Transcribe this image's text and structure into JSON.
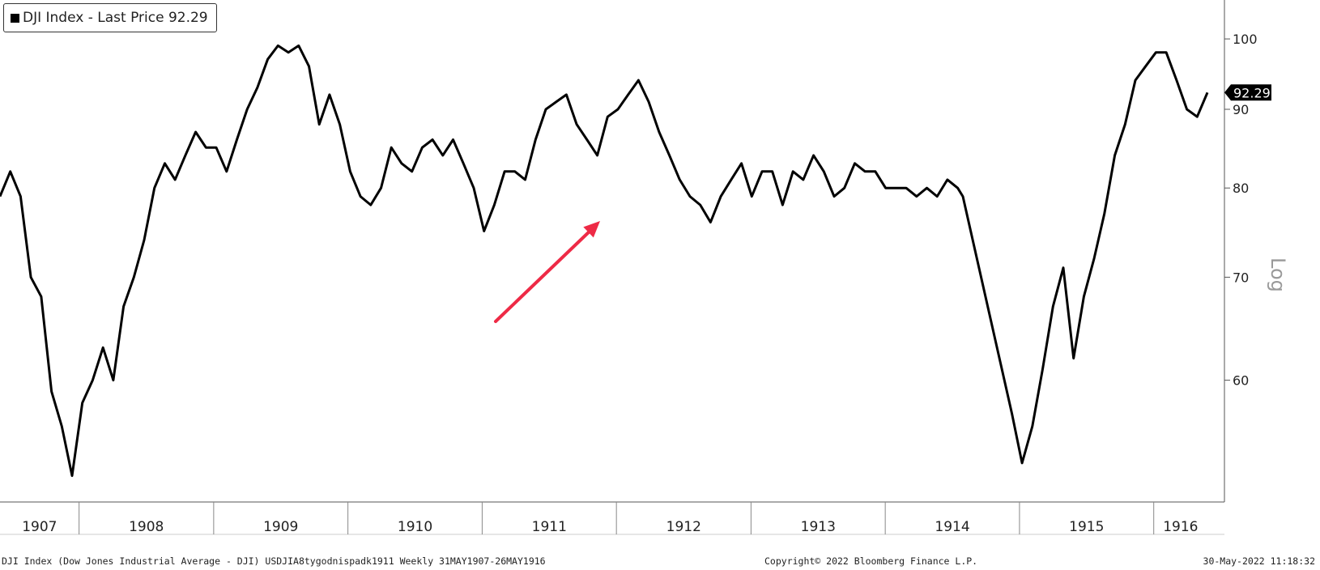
{
  "legend": {
    "label": "DJI Index - Last Price 92.29"
  },
  "footer": {
    "left": "DJI Index (Dow Jones Industrial Average - DJI) USDJIA8tygodnispadk1911  Weekly 31MAY1907-26MAY1916",
    "center": "Copyright© 2022 Bloomberg Finance L.P.",
    "right": "30-May-2022 11:18:32"
  },
  "colors": {
    "line": "#000000",
    "arrow": "#ee2a46",
    "axis": "#555555"
  },
  "chart_data": {
    "type": "line",
    "title": "DJI Index - Last Price 92.29",
    "ylabel": "Log",
    "yscale": "log",
    "ylim": [
      50,
      106
    ],
    "yticks": [
      60,
      70,
      80,
      90,
      100
    ],
    "xticks": [
      "1907",
      "1908",
      "1909",
      "1910",
      "1911",
      "1912",
      "1913",
      "1914",
      "1915",
      "1916"
    ],
    "x_range": [
      "1907-05-31",
      "1916-05-26"
    ],
    "grid": false,
    "last_value_label": "92.29",
    "series": [
      {
        "name": "DJI Index",
        "x": [
          "1907-05-31",
          "1907-06-28",
          "1907-07-26",
          "1907-08-23",
          "1907-09-20",
          "1907-10-18",
          "1907-11-15",
          "1907-12-13",
          "1908-01-10",
          "1908-02-07",
          "1908-03-06",
          "1908-04-03",
          "1908-05-01",
          "1908-05-29",
          "1908-06-26",
          "1908-07-24",
          "1908-08-21",
          "1908-09-18",
          "1908-10-16",
          "1908-11-13",
          "1908-12-11",
          "1909-01-08",
          "1909-02-05",
          "1909-03-05",
          "1909-04-02",
          "1909-04-30",
          "1909-05-28",
          "1909-06-25",
          "1909-07-23",
          "1909-08-20",
          "1909-09-17",
          "1909-10-15",
          "1909-11-12",
          "1909-12-10",
          "1910-01-07",
          "1910-02-04",
          "1910-03-04",
          "1910-04-01",
          "1910-04-29",
          "1910-05-27",
          "1910-06-24",
          "1910-07-22",
          "1910-08-19",
          "1910-09-16",
          "1910-10-14",
          "1910-11-11",
          "1910-12-09",
          "1911-01-06",
          "1911-02-03",
          "1911-03-03",
          "1911-03-31",
          "1911-04-28",
          "1911-05-26",
          "1911-06-23",
          "1911-07-21",
          "1911-08-18",
          "1911-09-15",
          "1911-10-13",
          "1911-11-10",
          "1911-12-08",
          "1912-01-05",
          "1912-02-02",
          "1912-03-01",
          "1912-03-29",
          "1912-04-26",
          "1912-05-24",
          "1912-06-21",
          "1912-07-19",
          "1912-08-16",
          "1912-09-13",
          "1912-10-11",
          "1912-11-08",
          "1912-12-06",
          "1913-01-03",
          "1913-01-31",
          "1913-02-28",
          "1913-03-28",
          "1913-04-25",
          "1913-05-23",
          "1913-06-20",
          "1913-07-18",
          "1913-08-15",
          "1913-09-12",
          "1913-10-10",
          "1913-11-07",
          "1913-12-05",
          "1914-01-02",
          "1914-01-30",
          "1914-02-27",
          "1914-03-27",
          "1914-04-24",
          "1914-05-22",
          "1914-06-19",
          "1914-07-17",
          "1914-07-31",
          "1914-12-12",
          "1915-01-08",
          "1915-02-05",
          "1915-03-05",
          "1915-04-02",
          "1915-04-30",
          "1915-05-28",
          "1915-06-25",
          "1915-07-23",
          "1915-08-20",
          "1915-09-17",
          "1915-10-15",
          "1915-11-12",
          "1915-12-10",
          "1916-01-07",
          "1916-02-04",
          "1916-03-03",
          "1916-03-31",
          "1916-04-28",
          "1916-05-26"
        ],
        "values": [
          79,
          82,
          79,
          70,
          68,
          59,
          56,
          52,
          58,
          60,
          63,
          60,
          67,
          70,
          74,
          80,
          83,
          81,
          84,
          87,
          85,
          85,
          82,
          86,
          90,
          93,
          97,
          99,
          98,
          99,
          96,
          88,
          92,
          88,
          82,
          79,
          78,
          80,
          85,
          83,
          82,
          85,
          86,
          84,
          86,
          83,
          80,
          75,
          78,
          82,
          82,
          81,
          86,
          90,
          91,
          92,
          88,
          86,
          84,
          89,
          90,
          92,
          94,
          91,
          87,
          84,
          81,
          79,
          78,
          76,
          79,
          81,
          83,
          79,
          82,
          82,
          78,
          82,
          81,
          84,
          82,
          79,
          80,
          83,
          82,
          82,
          80,
          80,
          80,
          79,
          80,
          79,
          81,
          80,
          79,
          57,
          53,
          56,
          61,
          67,
          71,
          62,
          68,
          72,
          77,
          84,
          88,
          94,
          96,
          98,
          98,
          94,
          90,
          89,
          92.29
        ]
      }
    ],
    "annotations": [
      {
        "type": "arrow",
        "points_to": "1911 low"
      }
    ]
  }
}
